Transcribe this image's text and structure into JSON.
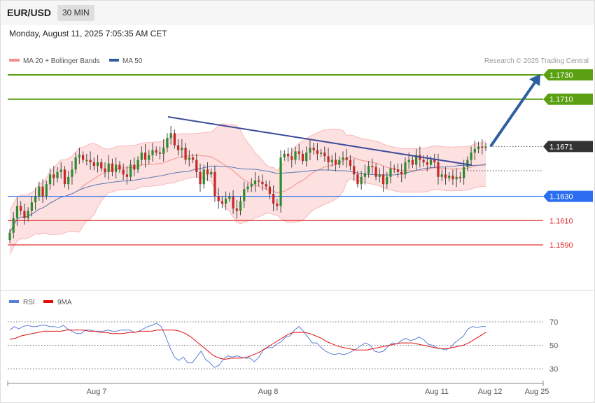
{
  "header": {
    "symbol": "EUR/USD",
    "timeframe": "30 MIN",
    "datetime": "Monday, August 11, 2025 7:05:35 AM CET"
  },
  "legend": {
    "items": [
      {
        "label": "MA 20 + Bollinger Bands",
        "color": "#f4908c"
      },
      {
        "label": "MA 50",
        "color": "#2e5d9e"
      }
    ],
    "credit": "Research © 2025 Trading Central"
  },
  "rsi_legend": {
    "items": [
      {
        "label": "RSI",
        "color": "#5b7fd6"
      },
      {
        "label": "9MA",
        "color": "#e01010"
      }
    ]
  },
  "chart_data": [
    {
      "type": "candlestick",
      "y_range": [
        1.1568,
        1.175
      ],
      "x_ticks": [
        "Aug 7",
        "Aug 8",
        "Aug 11",
        "Aug 12",
        "Aug 25"
      ],
      "levels": [
        {
          "value": 1.173,
          "label": "1.1730",
          "role": "target",
          "color": "#5aa012"
        },
        {
          "value": 1.171,
          "label": "1.1710",
          "role": "target",
          "color": "#5aa012"
        },
        {
          "value": 1.1671,
          "label": "1.1671",
          "role": "last price",
          "color": "#333333"
        },
        {
          "value": 1.163,
          "label": "1.1630",
          "role": "pivot",
          "color": "#2b6ff0"
        },
        {
          "value": 1.161,
          "label": "1.1610",
          "role": "support",
          "color": "#e03030"
        },
        {
          "value": 1.159,
          "label": "1.1590",
          "role": "support",
          "color": "#e03030"
        }
      ],
      "close": [
        1.16,
        1.1612,
        1.1622,
        1.1618,
        1.1612,
        1.1618,
        1.1625,
        1.163,
        1.1638,
        1.163,
        1.164,
        1.1648,
        1.1645,
        1.165,
        1.1652,
        1.164,
        1.1646,
        1.1652,
        1.1662,
        1.1664,
        1.166,
        1.166,
        1.1658,
        1.1655,
        1.1658,
        1.1653,
        1.165,
        1.1657,
        1.165,
        1.1656,
        1.1652,
        1.1648,
        1.1646,
        1.1656,
        1.1652,
        1.166,
        1.1666,
        1.166,
        1.1664,
        1.1668,
        1.1666,
        1.1665,
        1.167,
        1.1678,
        1.1682,
        1.1672,
        1.1668,
        1.167,
        1.166,
        1.1662,
        1.166,
        1.165,
        1.164,
        1.1652,
        1.1648,
        1.165,
        1.163,
        1.1626,
        1.1624,
        1.1628,
        1.163,
        1.162,
        1.1618,
        1.1626,
        1.1636,
        1.1638,
        1.164,
        1.1643,
        1.1642,
        1.164,
        1.1638,
        1.1632,
        1.1624,
        1.1622,
        1.1662,
        1.1665,
        1.1663,
        1.166,
        1.1667,
        1.1665,
        1.1659,
        1.1666,
        1.167,
        1.1668,
        1.1665,
        1.1666,
        1.1663,
        1.1658,
        1.166,
        1.1656,
        1.166,
        1.1662,
        1.166,
        1.1655,
        1.1648,
        1.164,
        1.1646,
        1.1649,
        1.1655,
        1.1654,
        1.1646,
        1.1648,
        1.164,
        1.1646,
        1.1653,
        1.1652,
        1.165,
        1.1648,
        1.1658,
        1.166,
        1.1656,
        1.1664,
        1.166,
        1.1658,
        1.1656,
        1.166,
        1.1658,
        1.1646,
        1.1648,
        1.1645,
        1.1647,
        1.1644,
        1.1646,
        1.1645,
        1.1654,
        1.166,
        1.1666,
        1.1669,
        1.1671,
        1.167,
        1.1671
      ]
    },
    {
      "type": "line",
      "title": "RSI",
      "y_ticks": [
        30,
        50,
        70
      ],
      "series": [
        {
          "name": "RSI",
          "values": [
            63,
            66,
            64,
            66,
            67,
            66,
            66,
            67,
            67,
            66,
            66,
            65,
            67,
            64,
            62,
            60,
            60,
            63,
            63,
            62,
            62,
            62,
            63,
            62,
            62,
            63,
            63,
            63,
            61,
            62,
            64,
            66,
            67,
            69,
            66,
            58,
            48,
            40,
            37,
            40,
            35,
            35,
            40,
            45,
            38,
            35,
            31,
            33,
            38,
            41,
            40,
            41,
            40,
            39,
            39,
            36,
            40,
            46,
            48,
            48,
            51,
            53,
            57,
            58,
            63,
            66,
            62,
            57,
            52,
            52,
            48,
            45,
            43,
            42,
            43,
            42,
            43,
            45,
            47,
            50,
            52,
            50,
            45,
            44,
            45,
            49,
            52,
            51,
            54,
            56,
            54,
            55,
            57,
            55,
            51,
            50,
            48,
            47,
            46,
            48,
            52,
            55,
            58,
            64,
            66,
            65,
            66,
            66
          ]
        },
        {
          "name": "9MA",
          "values": [
            55,
            56,
            58,
            59,
            60,
            61,
            62,
            62,
            62,
            62,
            63,
            63,
            63,
            63,
            62,
            62,
            61,
            61,
            60,
            60,
            60,
            61,
            61,
            62,
            62,
            62,
            63,
            63,
            63,
            63,
            62,
            60,
            57,
            53,
            49,
            45,
            41,
            39,
            38,
            39,
            39,
            39,
            40,
            42,
            44,
            47,
            50,
            53,
            56,
            59,
            61,
            61,
            61,
            60,
            58,
            56,
            53,
            51,
            49,
            48,
            47,
            46,
            46,
            46,
            47,
            48,
            49,
            50,
            51,
            52,
            52,
            52,
            51,
            50,
            49,
            48,
            47,
            47,
            48,
            49,
            50,
            52,
            55,
            58,
            61
          ]
        }
      ]
    }
  ]
}
